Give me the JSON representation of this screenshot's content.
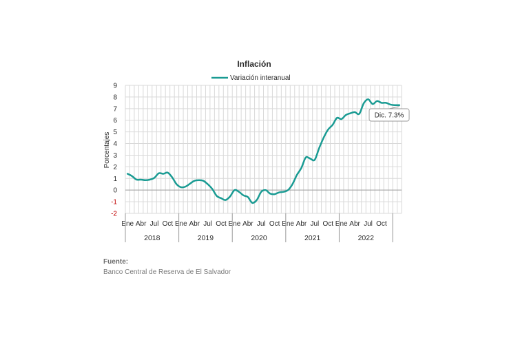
{
  "chart_data": {
    "type": "line",
    "title": "Inflación",
    "ylabel": "Porcentajes",
    "xlabel": "",
    "ylim": [
      -2,
      9
    ],
    "yticks": [
      "9",
      "8",
      "7",
      "6",
      "5",
      "4",
      "3",
      "2",
      "1",
      "0",
      "-1",
      "-2"
    ],
    "grid": true,
    "legend_position": "top-center",
    "month_labels": [
      "Ene",
      "Abr",
      "Jul",
      "Oct"
    ],
    "years": [
      "2018",
      "2019",
      "2020",
      "2021",
      "2022"
    ],
    "series": [
      {
        "name": "Variación interanual",
        "color": "#1a9b93",
        "values": [
          1.4,
          1.2,
          0.9,
          0.9,
          0.85,
          0.9,
          1.05,
          1.45,
          1.4,
          1.5,
          1.1,
          0.5,
          0.25,
          0.3,
          0.55,
          0.8,
          0.85,
          0.8,
          0.5,
          0.1,
          -0.5,
          -0.7,
          -0.85,
          -0.55,
          0.0,
          -0.15,
          -0.45,
          -0.6,
          -1.1,
          -0.85,
          -0.15,
          0.0,
          -0.3,
          -0.35,
          -0.2,
          -0.15,
          0.0,
          0.5,
          1.3,
          1.9,
          2.8,
          2.7,
          2.6,
          3.6,
          4.5,
          5.2,
          5.6,
          6.2,
          6.1,
          6.45,
          6.6,
          6.7,
          6.55,
          7.45,
          7.8,
          7.4,
          7.65,
          7.5,
          7.5,
          7.35,
          7.3,
          7.3
        ]
      }
    ],
    "annotation": "Dic. 7.3%"
  },
  "source": {
    "title": "Fuente:",
    "text": "Banco Central de Reserva de El Salvador"
  }
}
